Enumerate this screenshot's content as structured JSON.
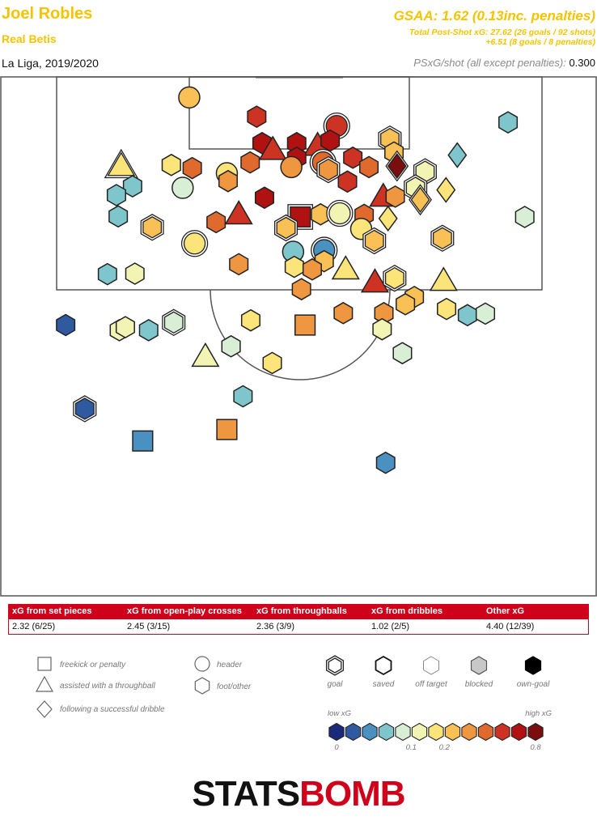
{
  "header": {
    "player": "Joel Robles",
    "team": "Real Betis",
    "competition": "La Liga, 2019/2020",
    "gsaa": "GSAA: 1.62 (0.13inc. penalties)",
    "psxg_line1": "Total Post-Shot xG: 27.62 (26 goals / 92 shots)",
    "psxg_line2": "+6.51 (8 goals / 8 penalties)",
    "per_shot_label": "PSxG/shot (all except penalties):",
    "per_shot_value": "0.300"
  },
  "table": {
    "columns": [
      {
        "header": "xG from set pieces",
        "value": "2.32 (6/25)"
      },
      {
        "header": "xG from open-play crosses",
        "value": "2.45 (3/15)"
      },
      {
        "header": "xG from throughballs",
        "value": "2.36 (3/9)"
      },
      {
        "header": "xG from dribbles",
        "value": "1.02 (2/5)"
      },
      {
        "header": "Other xG",
        "value": "4.40 (12/39)"
      }
    ]
  },
  "legend": {
    "shapes": [
      {
        "shape": "square",
        "label": "freekick or penalty"
      },
      {
        "shape": "triangle",
        "label": "assisted with a throughball"
      },
      {
        "shape": "diamond",
        "label": "following a successful dribble"
      },
      {
        "shape": "circle",
        "label": "header"
      },
      {
        "shape": "hexagon",
        "label": "foot/other"
      }
    ],
    "outcomes": [
      {
        "key": "goal",
        "label": "goal"
      },
      {
        "key": "saved",
        "label": "saved"
      },
      {
        "key": "off",
        "label": "off target"
      },
      {
        "key": "blocked",
        "label": "blocked"
      },
      {
        "key": "own",
        "label": "own-goal"
      }
    ],
    "scale_low": "low xG",
    "scale_high": "high xG",
    "scale_ticks": [
      "0",
      "0.1",
      "0.2",
      "0.8"
    ],
    "scale_colors": [
      "#1a2a7a",
      "#2f5a9f",
      "#4a90c0",
      "#7fc6cc",
      "#d8efd6",
      "#f2f4b4",
      "#fbe57a",
      "#f8c055",
      "#ef9740",
      "#e06a2e",
      "#cc3322",
      "#b01212",
      "#7a0d0d"
    ]
  },
  "logo": {
    "part1": "STATS",
    "part2": "BOMB"
  },
  "chart_data": {
    "type": "scatter",
    "title": "Joel Robles",
    "description_axes": "pitch coordinates",
    "xlim": [
      0,
      100
    ],
    "ylim": [
      0,
      100
    ],
    "shots": [
      {
        "x": 31.7,
        "y": 95.9,
        "shape": "circle",
        "outcome": "off",
        "color": "#f8c055"
      },
      {
        "x": 43.0,
        "y": 92.2,
        "shape": "hexagon",
        "outcome": "saved",
        "color": "#cc3322"
      },
      {
        "x": 56.4,
        "y": 90.4,
        "shape": "circle",
        "outcome": "goal",
        "color": "#cc3322"
      },
      {
        "x": 85.1,
        "y": 91.1,
        "shape": "hexagon",
        "outcome": "saved",
        "color": "#7fc6cc"
      },
      {
        "x": 43.9,
        "y": 87.1,
        "shape": "hexagon",
        "outcome": "saved",
        "color": "#b01212"
      },
      {
        "x": 49.7,
        "y": 87.1,
        "shape": "hexagon",
        "outcome": "saved",
        "color": "#b01212"
      },
      {
        "x": 45.7,
        "y": 85.8,
        "shape": "triangle",
        "outcome": "saved",
        "color": "#cc3322"
      },
      {
        "x": 53.2,
        "y": 86.6,
        "shape": "triangle",
        "outcome": "saved",
        "color": "#cc3322"
      },
      {
        "x": 55.3,
        "y": 87.6,
        "shape": "hexagon",
        "outcome": "saved",
        "color": "#b01212"
      },
      {
        "x": 65.3,
        "y": 87.9,
        "shape": "hexagon",
        "outcome": "goal",
        "color": "#f8c055"
      },
      {
        "x": 66.0,
        "y": 85.3,
        "shape": "hexagon",
        "outcome": "saved",
        "color": "#f8c055"
      },
      {
        "x": 49.7,
        "y": 84.3,
        "shape": "hexagon",
        "outcome": "saved",
        "color": "#b01212"
      },
      {
        "x": 20.3,
        "y": 82.7,
        "shape": "triangle",
        "outcome": "goal",
        "color": "#fbe57a"
      },
      {
        "x": 28.7,
        "y": 82.9,
        "shape": "hexagon",
        "outcome": "saved",
        "color": "#fbe57a"
      },
      {
        "x": 32.2,
        "y": 82.3,
        "shape": "hexagon",
        "outcome": "saved",
        "color": "#e06a2e"
      },
      {
        "x": 41.9,
        "y": 83.4,
        "shape": "hexagon",
        "outcome": "saved",
        "color": "#e06a2e"
      },
      {
        "x": 48.8,
        "y": 82.5,
        "shape": "circle",
        "outcome": "saved",
        "color": "#ef9740"
      },
      {
        "x": 54.1,
        "y": 83.4,
        "shape": "circle",
        "outcome": "goal",
        "color": "#e06a2e"
      },
      {
        "x": 59.1,
        "y": 84.3,
        "shape": "hexagon",
        "outcome": "saved",
        "color": "#cc3322"
      },
      {
        "x": 61.8,
        "y": 82.5,
        "shape": "hexagon",
        "outcome": "saved",
        "color": "#e06a2e"
      },
      {
        "x": 66.5,
        "y": 82.7,
        "shape": "diamond",
        "outcome": "goal",
        "color": "#7a0d0d"
      },
      {
        "x": 76.6,
        "y": 84.8,
        "shape": "diamond",
        "outcome": "saved",
        "color": "#7fc6cc"
      },
      {
        "x": 55.0,
        "y": 82.0,
        "shape": "hexagon",
        "outcome": "goal",
        "color": "#ef9740"
      },
      {
        "x": 38.0,
        "y": 81.3,
        "shape": "circle",
        "outcome": "saved",
        "color": "#fbe57a"
      },
      {
        "x": 58.2,
        "y": 79.7,
        "shape": "hexagon",
        "outcome": "saved",
        "color": "#cc3322"
      },
      {
        "x": 71.2,
        "y": 81.6,
        "shape": "hexagon",
        "outcome": "goal",
        "color": "#f2f4b4"
      },
      {
        "x": 22.2,
        "y": 78.8,
        "shape": "hexagon",
        "outcome": "saved",
        "color": "#7fc6cc"
      },
      {
        "x": 30.6,
        "y": 78.5,
        "shape": "circle",
        "outcome": "saved",
        "color": "#d8efd6"
      },
      {
        "x": 38.2,
        "y": 79.8,
        "shape": "hexagon",
        "outcome": "saved",
        "color": "#ef9740"
      },
      {
        "x": 69.6,
        "y": 78.5,
        "shape": "hexagon",
        "outcome": "goal",
        "color": "#f2f4b4"
      },
      {
        "x": 74.7,
        "y": 78.1,
        "shape": "diamond",
        "outcome": "saved",
        "color": "#fbe57a"
      },
      {
        "x": 64.2,
        "y": 76.8,
        "shape": "triangle",
        "outcome": "saved",
        "color": "#cc3322"
      },
      {
        "x": 66.2,
        "y": 76.8,
        "shape": "hexagon",
        "outcome": "saved",
        "color": "#ef9740"
      },
      {
        "x": 19.5,
        "y": 77.1,
        "shape": "hexagon",
        "outcome": "saved",
        "color": "#7fc6cc"
      },
      {
        "x": 44.3,
        "y": 76.6,
        "shape": "hexagon",
        "outcome": "saved",
        "color": "#b01212"
      },
      {
        "x": 70.4,
        "y": 76.2,
        "shape": "diamond",
        "outcome": "goal",
        "color": "#f8c055"
      },
      {
        "x": 40.0,
        "y": 73.4,
        "shape": "triangle",
        "outcome": "saved",
        "color": "#cc3322"
      },
      {
        "x": 50.3,
        "y": 72.9,
        "shape": "square",
        "outcome": "goal",
        "color": "#b01212"
      },
      {
        "x": 53.7,
        "y": 73.4,
        "shape": "hexagon",
        "outcome": "saved",
        "color": "#f8c055"
      },
      {
        "x": 56.9,
        "y": 73.6,
        "shape": "circle",
        "outcome": "goal",
        "color": "#f2f4b4"
      },
      {
        "x": 61.0,
        "y": 73.3,
        "shape": "hexagon",
        "outcome": "saved",
        "color": "#e06a2e"
      },
      {
        "x": 19.8,
        "y": 73.0,
        "shape": "hexagon",
        "outcome": "saved",
        "color": "#7fc6cc"
      },
      {
        "x": 36.2,
        "y": 71.9,
        "shape": "hexagon",
        "outcome": "saved",
        "color": "#e06a2e"
      },
      {
        "x": 25.5,
        "y": 70.9,
        "shape": "hexagon",
        "outcome": "goal",
        "color": "#f8c055"
      },
      {
        "x": 47.9,
        "y": 70.8,
        "shape": "hexagon",
        "outcome": "goal",
        "color": "#f8c055"
      },
      {
        "x": 60.5,
        "y": 70.6,
        "shape": "circle",
        "outcome": "saved",
        "color": "#fbe57a"
      },
      {
        "x": 65.0,
        "y": 72.6,
        "shape": "diamond",
        "outcome": "saved",
        "color": "#fbe57a"
      },
      {
        "x": 87.9,
        "y": 72.9,
        "shape": "hexagon",
        "outcome": "saved",
        "color": "#d8efd6"
      },
      {
        "x": 32.6,
        "y": 67.8,
        "shape": "circle",
        "outcome": "goal",
        "color": "#fbe57a"
      },
      {
        "x": 62.7,
        "y": 68.3,
        "shape": "hexagon",
        "outcome": "goal",
        "color": "#f8c055"
      },
      {
        "x": 74.1,
        "y": 68.8,
        "shape": "hexagon",
        "outcome": "goal",
        "color": "#f8c055"
      },
      {
        "x": 54.3,
        "y": 66.5,
        "shape": "circle",
        "outcome": "goal",
        "color": "#4a90c0"
      },
      {
        "x": 49.1,
        "y": 66.2,
        "shape": "circle",
        "outcome": "saved",
        "color": "#7fc6cc"
      },
      {
        "x": 40.0,
        "y": 63.8,
        "shape": "hexagon",
        "outcome": "saved",
        "color": "#ef9740"
      },
      {
        "x": 49.3,
        "y": 63.3,
        "shape": "hexagon",
        "outcome": "saved",
        "color": "#fbe57a"
      },
      {
        "x": 54.3,
        "y": 64.4,
        "shape": "hexagon",
        "outcome": "saved",
        "color": "#f8c055"
      },
      {
        "x": 57.9,
        "y": 62.8,
        "shape": "triangle",
        "outcome": "saved",
        "color": "#fbe57a"
      },
      {
        "x": 52.3,
        "y": 62.8,
        "shape": "hexagon",
        "outcome": "saved",
        "color": "#ef9740"
      },
      {
        "x": 18.0,
        "y": 61.9,
        "shape": "hexagon",
        "outcome": "saved",
        "color": "#7fc6cc"
      },
      {
        "x": 22.6,
        "y": 62.0,
        "shape": "hexagon",
        "outcome": "saved",
        "color": "#f2f4b4"
      },
      {
        "x": 62.8,
        "y": 60.3,
        "shape": "triangle",
        "outcome": "saved",
        "color": "#cc3322"
      },
      {
        "x": 66.1,
        "y": 61.1,
        "shape": "hexagon",
        "outcome": "goal",
        "color": "#fbe57a"
      },
      {
        "x": 74.3,
        "y": 60.6,
        "shape": "triangle",
        "outcome": "saved",
        "color": "#fbe57a"
      },
      {
        "x": 50.5,
        "y": 59.0,
        "shape": "hexagon",
        "outcome": "saved",
        "color": "#ef9740"
      },
      {
        "x": 69.4,
        "y": 57.5,
        "shape": "hexagon",
        "outcome": "saved",
        "color": "#f8c055"
      },
      {
        "x": 67.9,
        "y": 56.1,
        "shape": "hexagon",
        "outcome": "saved",
        "color": "#f8c055"
      },
      {
        "x": 57.5,
        "y": 54.4,
        "shape": "hexagon",
        "outcome": "saved",
        "color": "#ef9740"
      },
      {
        "x": 64.3,
        "y": 54.4,
        "shape": "hexagon",
        "outcome": "saved",
        "color": "#ef9740"
      },
      {
        "x": 74.8,
        "y": 55.2,
        "shape": "hexagon",
        "outcome": "saved",
        "color": "#fbe57a"
      },
      {
        "x": 78.3,
        "y": 54.0,
        "shape": "hexagon",
        "outcome": "saved",
        "color": "#7fc6cc"
      },
      {
        "x": 81.3,
        "y": 54.3,
        "shape": "hexagon",
        "outcome": "saved",
        "color": "#d8efd6"
      },
      {
        "x": 11.0,
        "y": 52.1,
        "shape": "hexagon",
        "outcome": "saved",
        "color": "#2f5a9f"
      },
      {
        "x": 20.0,
        "y": 51.1,
        "shape": "hexagon",
        "outcome": "saved",
        "color": "#f2f4b4"
      },
      {
        "x": 21.0,
        "y": 51.7,
        "shape": "hexagon",
        "outcome": "saved",
        "color": "#f2f4b4"
      },
      {
        "x": 24.9,
        "y": 51.1,
        "shape": "hexagon",
        "outcome": "saved",
        "color": "#7fc6cc"
      },
      {
        "x": 29.1,
        "y": 52.6,
        "shape": "hexagon",
        "outcome": "goal",
        "color": "#d8efd6"
      },
      {
        "x": 42.0,
        "y": 53.0,
        "shape": "hexagon",
        "outcome": "saved",
        "color": "#fbe57a"
      },
      {
        "x": 51.1,
        "y": 52.1,
        "shape": "square",
        "outcome": "saved",
        "color": "#ef9740"
      },
      {
        "x": 64.0,
        "y": 51.3,
        "shape": "hexagon",
        "outcome": "saved",
        "color": "#f2f4b4"
      },
      {
        "x": 38.7,
        "y": 48.0,
        "shape": "hexagon",
        "outcome": "saved",
        "color": "#d8efd6"
      },
      {
        "x": 67.4,
        "y": 46.7,
        "shape": "hexagon",
        "outcome": "saved",
        "color": "#d8efd6"
      },
      {
        "x": 34.4,
        "y": 46.0,
        "shape": "triangle",
        "outcome": "saved",
        "color": "#f2f4b4"
      },
      {
        "x": 45.6,
        "y": 44.8,
        "shape": "hexagon",
        "outcome": "saved",
        "color": "#fbe57a"
      },
      {
        "x": 40.7,
        "y": 38.4,
        "shape": "hexagon",
        "outcome": "saved",
        "color": "#7fc6cc"
      },
      {
        "x": 14.2,
        "y": 36.0,
        "shape": "hexagon",
        "outcome": "goal",
        "color": "#2f5a9f"
      },
      {
        "x": 38.0,
        "y": 32.0,
        "shape": "square",
        "outcome": "saved",
        "color": "#ef9740"
      },
      {
        "x": 23.9,
        "y": 29.8,
        "shape": "square",
        "outcome": "saved",
        "color": "#4a90c0"
      },
      {
        "x": 64.6,
        "y": 25.6,
        "shape": "hexagon",
        "outcome": "saved",
        "color": "#4a90c0"
      }
    ]
  }
}
